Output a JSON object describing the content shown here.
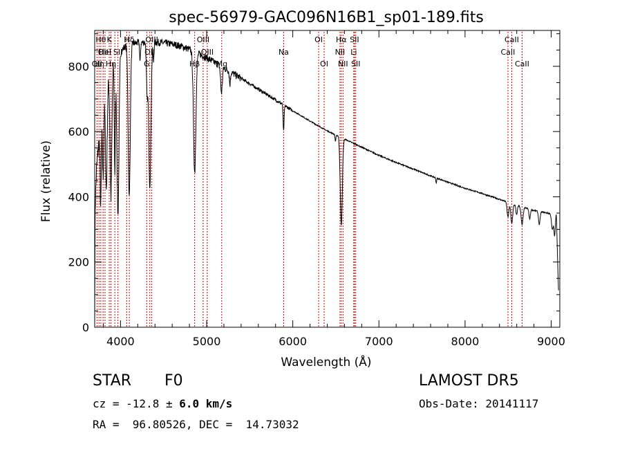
{
  "chart_data": {
    "type": "line",
    "title": "spec-56979-GAC096N16B1_sp01-189.fits",
    "xlabel": "Wavelength (Å)",
    "ylabel": "Flux (relative)",
    "xlim": [
      3700,
      9100
    ],
    "ylim": [
      0,
      910
    ],
    "x_ticks": [
      4000,
      5000,
      6000,
      7000,
      8000,
      9000
    ],
    "y_ticks": [
      0,
      200,
      400,
      600,
      800
    ],
    "grid": false,
    "line_color": "#000000",
    "marker_line_color": "#cc0000",
    "continuum": [
      [
        3700,
        0
      ],
      [
        3705,
        360
      ],
      [
        3720,
        480
      ],
      [
        3760,
        600
      ],
      [
        3800,
        680
      ],
      [
        3850,
        740
      ],
      [
        3900,
        790
      ],
      [
        3950,
        820
      ],
      [
        4000,
        845
      ],
      [
        4050,
        860
      ],
      [
        4100,
        868
      ],
      [
        4200,
        872
      ],
      [
        4300,
        874
      ],
      [
        4400,
        874
      ],
      [
        4500,
        872
      ],
      [
        4600,
        868
      ],
      [
        4700,
        862
      ],
      [
        4800,
        852
      ],
      [
        4900,
        840
      ],
      [
        5000,
        826
      ],
      [
        5200,
        795
      ],
      [
        5400,
        763
      ],
      [
        5600,
        730
      ],
      [
        5800,
        697
      ],
      [
        6000,
        664
      ],
      [
        6200,
        632
      ],
      [
        6400,
        602
      ],
      [
        6600,
        577
      ],
      [
        6800,
        552
      ],
      [
        7000,
        527
      ],
      [
        7200,
        505
      ],
      [
        7400,
        485
      ],
      [
        7600,
        464
      ],
      [
        7800,
        445
      ],
      [
        8000,
        426
      ],
      [
        8200,
        410
      ],
      [
        8400,
        392
      ],
      [
        8600,
        374
      ],
      [
        8800,
        358
      ],
      [
        9000,
        348
      ],
      [
        9060,
        352
      ],
      [
        9080,
        150
      ],
      [
        9100,
        0
      ]
    ],
    "absorption_lines": [
      {
        "center": 3770,
        "depth": 250,
        "width": 7
      },
      {
        "center": 3798,
        "depth": 220,
        "width": 7
      },
      {
        "center": 3835,
        "depth": 300,
        "width": 9
      },
      {
        "center": 3889,
        "depth": 380,
        "width": 10
      },
      {
        "center": 3934,
        "depth": 330,
        "width": 6
      },
      {
        "center": 3970,
        "depth": 480,
        "width": 12
      },
      {
        "center": 4101,
        "depth": 470,
        "width": 12
      },
      {
        "center": 4227,
        "depth": 60,
        "width": 5
      },
      {
        "center": 4308,
        "depth": 150,
        "width": 8
      },
      {
        "center": 4340,
        "depth": 440,
        "width": 13
      },
      {
        "center": 4383,
        "depth": 60,
        "width": 5
      },
      {
        "center": 4861,
        "depth": 370,
        "width": 14
      },
      {
        "center": 5172,
        "depth": 80,
        "width": 10
      },
      {
        "center": 5270,
        "depth": 40,
        "width": 6
      },
      {
        "center": 5893,
        "depth": 80,
        "width": 6
      },
      {
        "center": 6495,
        "depth": 20,
        "width": 5
      },
      {
        "center": 6563,
        "depth": 270,
        "width": 12
      },
      {
        "center": 7665,
        "depth": 15,
        "width": 5
      },
      {
        "center": 8498,
        "depth": 45,
        "width": 10
      },
      {
        "center": 8542,
        "depth": 60,
        "width": 11
      },
      {
        "center": 8598,
        "depth": 30,
        "width": 8
      },
      {
        "center": 8662,
        "depth": 55,
        "width": 11
      },
      {
        "center": 8750,
        "depth": 30,
        "width": 8
      },
      {
        "center": 8862,
        "depth": 40,
        "width": 9
      },
      {
        "center": 9014,
        "depth": 50,
        "width": 10
      },
      {
        "center": 9040,
        "depth": 70,
        "width": 8
      }
    ],
    "reference_lines": [
      {
        "wavelength": 3727,
        "label": "OII",
        "row": 2
      },
      {
        "wavelength": 3750,
        "label": "Hη",
        "row": 2
      },
      {
        "wavelength": 3771,
        "label": "Hθ",
        "row": 0
      },
      {
        "wavelength": 3798,
        "label": "OII",
        "row": 1
      },
      {
        "wavelength": 3820,
        "label": "HeI",
        "row": 1
      },
      {
        "wavelength": 3869,
        "label": "K",
        "row": 0
      },
      {
        "wavelength": 3889,
        "label": "Hη",
        "row": 2
      },
      {
        "wavelength": 3934,
        "label": "",
        "row": 0
      },
      {
        "wavelength": 3970,
        "label": "SII",
        "row": 1
      },
      {
        "wavelength": 4072,
        "label": "H",
        "row": 0
      },
      {
        "wavelength": 4102,
        "label": "Hδ",
        "row": 0
      },
      {
        "wavelength": 4304,
        "label": "G",
        "row": 2
      },
      {
        "wavelength": 4340,
        "label": "OII",
        "row": 1
      },
      {
        "wavelength": 4363,
        "label": "OIII",
        "row": 0
      },
      {
        "wavelength": 4861,
        "label": "Hβ",
        "row": 2
      },
      {
        "wavelength": 4959,
        "label": "OIII",
        "row": 0
      },
      {
        "wavelength": 5007,
        "label": "OIII",
        "row": 1
      },
      {
        "wavelength": 5175,
        "label": "Mg",
        "row": 2
      },
      {
        "wavelength": 5894,
        "label": "Na",
        "row": 1
      },
      {
        "wavelength": 6300,
        "label": "OI",
        "row": 0
      },
      {
        "wavelength": 6364,
        "label": "OI",
        "row": 2
      },
      {
        "wavelength": 6548,
        "label": "NII",
        "row": 1
      },
      {
        "wavelength": 6563,
        "label": "Hα",
        "row": 0
      },
      {
        "wavelength": 6583,
        "label": "NII",
        "row": 2
      },
      {
        "wavelength": 6708,
        "label": "Li",
        "row": 1
      },
      {
        "wavelength": 6716,
        "label": "SII",
        "row": 0
      },
      {
        "wavelength": 6731,
        "label": "SII",
        "row": 2
      },
      {
        "wavelength": 8498,
        "label": "CaII",
        "row": 1
      },
      {
        "wavelength": 8542,
        "label": "CaII",
        "row": 0
      },
      {
        "wavelength": 8662,
        "label": "CaII",
        "row": 2
      }
    ]
  },
  "info": {
    "class_label": "STAR",
    "subclass": "F0",
    "survey": "LAMOST DR5",
    "cz_text": "cz = -12.8 ± ",
    "cz_err": "6.0 km/s",
    "obs_date": "Obs-Date: 20141117",
    "coords": "RA =  96.80526, DEC =  14.73032"
  }
}
